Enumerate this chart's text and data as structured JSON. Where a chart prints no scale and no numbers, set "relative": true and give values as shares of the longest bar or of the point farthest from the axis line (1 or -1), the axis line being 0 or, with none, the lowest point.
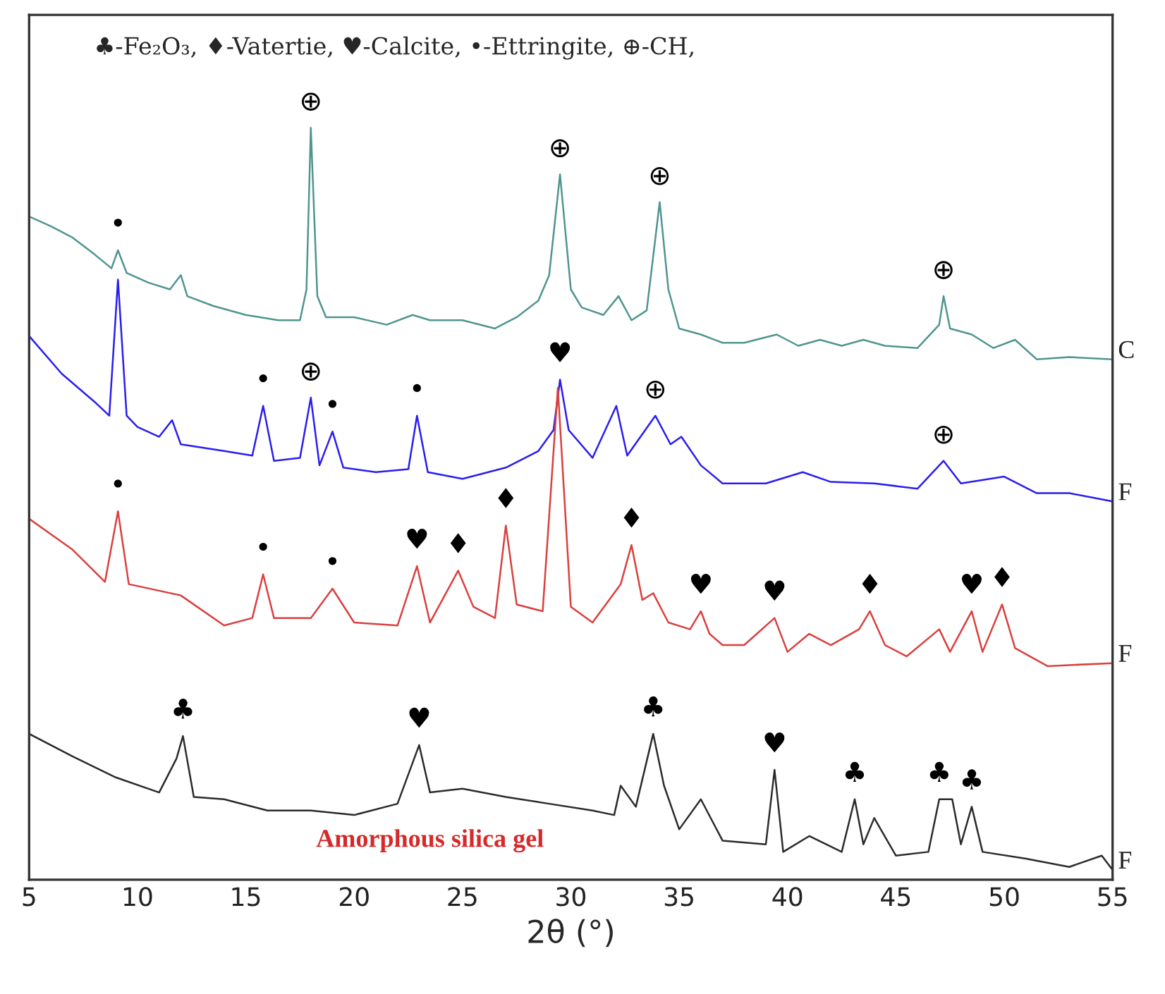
{
  "chart_data": {
    "type": "line",
    "relative": true,
    "xlabel": "2θ (°)",
    "xlim": [
      5,
      55
    ],
    "xticks": [
      5,
      10,
      15,
      20,
      25,
      30,
      35,
      40,
      45,
      50,
      55
    ],
    "tick_labels": "x",
    "grid": false,
    "legend": false,
    "marker": "none",
    "line_style": "solid",
    "series": [
      {
        "name": "C",
        "color": "#4f958f",
        "x": [
          5,
          6,
          7,
          8,
          8.8,
          9.1,
          9.5,
          10.5,
          11.5,
          12.0,
          12.3,
          13.5,
          15,
          16.5,
          17.5,
          17.8,
          18.0,
          18.3,
          18.7,
          20,
          21.5,
          22.7,
          23.5,
          25,
          26.5,
          27.5,
          28.5,
          29.0,
          29.5,
          30.0,
          30.5,
          31.5,
          32.2,
          32.8,
          33.5,
          34.1,
          34.5,
          35.0,
          36,
          37,
          38,
          39.5,
          40.5,
          41.5,
          42.5,
          43.5,
          44.5,
          46,
          47.0,
          47.2,
          47.5,
          48.5,
          49.5,
          50.5,
          51.5,
          53,
          55
        ],
        "values": [
          0.882,
          0.869,
          0.854,
          0.832,
          0.813,
          0.837,
          0.807,
          0.794,
          0.785,
          0.804,
          0.776,
          0.763,
          0.751,
          0.744,
          0.744,
          0.785,
          1.0,
          0.776,
          0.748,
          0.748,
          0.738,
          0.751,
          0.744,
          0.744,
          0.733,
          0.748,
          0.77,
          0.804,
          0.938,
          0.785,
          0.761,
          0.751,
          0.776,
          0.744,
          0.757,
          0.901,
          0.785,
          0.733,
          0.725,
          0.714,
          0.714,
          0.725,
          0.71,
          0.718,
          0.71,
          0.718,
          0.71,
          0.707,
          0.738,
          0.776,
          0.733,
          0.725,
          0.707,
          0.718,
          0.692,
          0.695,
          0.692
        ]
      },
      {
        "name": "F",
        "color": "#2a1df0",
        "x": [
          5,
          6.5,
          8,
          8.7,
          9.1,
          9.5,
          10,
          11,
          11.6,
          12,
          14,
          15.3,
          15.8,
          16.3,
          17.5,
          18.0,
          18.4,
          19.0,
          19.5,
          21,
          22.5,
          22.9,
          23.4,
          25,
          27,
          28.5,
          29.2,
          29.5,
          29.9,
          31,
          32.1,
          32.6,
          33.9,
          34.6,
          35.1,
          36,
          37,
          39,
          40.7,
          42,
          44,
          46,
          47.2,
          48,
          50,
          51.5,
          53,
          55
        ],
        "values": [
          0.723,
          0.673,
          0.636,
          0.617,
          0.798,
          0.617,
          0.602,
          0.589,
          0.611,
          0.579,
          0.57,
          0.564,
          0.63,
          0.557,
          0.561,
          0.641,
          0.551,
          0.596,
          0.548,
          0.542,
          0.546,
          0.617,
          0.542,
          0.533,
          0.548,
          0.57,
          0.598,
          0.665,
          0.598,
          0.561,
          0.63,
          0.564,
          0.617,
          0.579,
          0.589,
          0.551,
          0.527,
          0.527,
          0.542,
          0.529,
          0.527,
          0.52,
          0.557,
          0.527,
          0.536,
          0.514,
          0.514,
          0.503
        ]
      },
      {
        "name": "F",
        "color": "#d9403f",
        "x": [
          5,
          7,
          8.5,
          9.1,
          9.6,
          12,
          14,
          15.3,
          15.8,
          16.3,
          18,
          19,
          20,
          22,
          22.9,
          23.5,
          24.8,
          25.5,
          26.5,
          27.0,
          27.5,
          28.7,
          29.4,
          30.0,
          31,
          32.3,
          32.8,
          33.3,
          33.8,
          34.5,
          35.5,
          36.0,
          36.4,
          37,
          38,
          39.4,
          40,
          41,
          42,
          43.3,
          43.8,
          44.5,
          45.5,
          47.0,
          47.5,
          48.5,
          49,
          49.9,
          50.5,
          52,
          55
        ],
        "values": [
          0.48,
          0.439,
          0.396,
          0.49,
          0.393,
          0.378,
          0.338,
          0.348,
          0.406,
          0.348,
          0.348,
          0.387,
          0.342,
          0.338,
          0.417,
          0.342,
          0.411,
          0.363,
          0.348,
          0.471,
          0.366,
          0.357,
          0.654,
          0.363,
          0.342,
          0.393,
          0.445,
          0.372,
          0.381,
          0.342,
          0.333,
          0.357,
          0.327,
          0.312,
          0.312,
          0.348,
          0.303,
          0.327,
          0.312,
          0.333,
          0.357,
          0.312,
          0.297,
          0.333,
          0.303,
          0.357,
          0.303,
          0.366,
          0.308,
          0.284,
          0.288
        ]
      },
      {
        "name": "F",
        "color": "#2b2b2b",
        "x": [
          5,
          7,
          9,
          11,
          11.8,
          12.1,
          12.6,
          14,
          16,
          18,
          20,
          22,
          23.0,
          23.5,
          25,
          27,
          29,
          31,
          32,
          32.3,
          33,
          33.8,
          34.3,
          35,
          36,
          37,
          39,
          39.4,
          39.8,
          41,
          42.5,
          43.1,
          43.5,
          44,
          45,
          46.5,
          47.0,
          47.6,
          48,
          48.5,
          49,
          51,
          53,
          54.5,
          55
        ],
        "values": [
          0.194,
          0.164,
          0.136,
          0.116,
          0.161,
          0.191,
          0.11,
          0.107,
          0.092,
          0.092,
          0.086,
          0.101,
          0.179,
          0.116,
          0.121,
          0.11,
          0.101,
          0.092,
          0.086,
          0.125,
          0.097,
          0.194,
          0.125,
          0.067,
          0.107,
          0.052,
          0.047,
          0.146,
          0.037,
          0.058,
          0.037,
          0.107,
          0.047,
          0.082,
          0.032,
          0.037,
          0.107,
          0.107,
          0.047,
          0.097,
          0.037,
          0.028,
          0.017,
          0.032,
          0.013
        ]
      }
    ],
    "annotations": [
      "♣-Fe₂O₃, ♦-Vatertie, ♥-Calcite, •-Ettringite, ⊕-CH,",
      "Amorphous silica gel",
      {
        "text": "•",
        "x": 9.1,
        "y": 0.837
      },
      {
        "text": "⊕",
        "x": 18.0,
        "y": 1.0
      },
      {
        "text": "⊕",
        "x": 29.5,
        "y": 0.938
      },
      {
        "text": "⊕",
        "x": 34.1,
        "y": 0.901
      },
      {
        "text": "⊕",
        "x": 47.2,
        "y": 0.776
      },
      {
        "text": "⊕",
        "x": 18.0,
        "y": 0.641
      },
      {
        "text": "•",
        "x": 15.8,
        "y": 0.63
      },
      {
        "text": "•",
        "x": 22.9,
        "y": 0.617
      },
      {
        "text": "•",
        "x": 19.0,
        "y": 0.596
      },
      {
        "text": "♥",
        "x": 29.5,
        "y": 0.665
      },
      {
        "text": "⊕",
        "x": 33.9,
        "y": 0.617
      },
      {
        "text": "⊕",
        "x": 47.2,
        "y": 0.557
      },
      {
        "text": "•",
        "x": 9.1,
        "y": 0.49
      },
      {
        "text": "•",
        "x": 15.8,
        "y": 0.406
      },
      {
        "text": "•",
        "x": 19,
        "y": 0.387
      },
      {
        "text": "♥",
        "x": 22.9,
        "y": 0.417
      },
      {
        "text": "♦",
        "x": 24.8,
        "y": 0.411
      },
      {
        "text": "♦",
        "x": 27.0,
        "y": 0.471
      },
      {
        "text": "♦",
        "x": 32.8,
        "y": 0.445
      },
      {
        "text": "♥",
        "x": 36.0,
        "y": 0.357
      },
      {
        "text": "♥",
        "x": 39.4,
        "y": 0.348
      },
      {
        "text": "♦",
        "x": 43.8,
        "y": 0.357
      },
      {
        "text": "♥",
        "x": 48.5,
        "y": 0.357
      },
      {
        "text": "♦",
        "x": 49.9,
        "y": 0.366
      },
      {
        "text": "♣",
        "x": 12.1,
        "y": 0.191
      },
      {
        "text": "♥",
        "x": 23.0,
        "y": 0.179
      },
      {
        "text": "♣",
        "x": 33.8,
        "y": 0.194
      },
      {
        "text": "♥",
        "x": 39.4,
        "y": 0.146
      },
      {
        "text": "♣",
        "x": 43.1,
        "y": 0.107
      },
      {
        "text": "♣",
        "x": 47.0,
        "y": 0.107
      },
      {
        "text": "♣",
        "x": 48.5,
        "y": 0.097
      }
    ]
  }
}
